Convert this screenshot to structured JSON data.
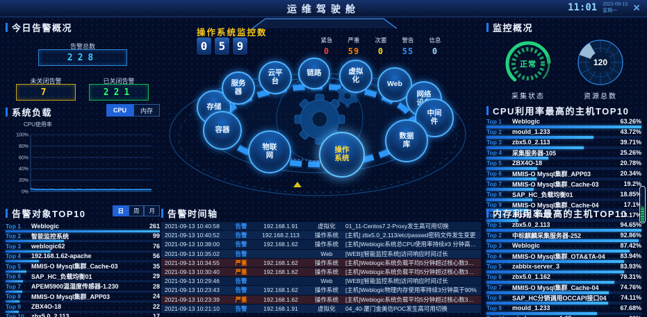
{
  "header": {
    "title": "运维驾驶舱",
    "time": "11:01",
    "date": "2021-09-13",
    "weekday": "星期一"
  },
  "colors": {
    "accent": "#1f7bff",
    "total": "#3fc8ff",
    "open": "#ffd21e",
    "closed": "#2aff6e",
    "urgent": "#f53f3f",
    "severe": "#ff7d00",
    "minor": "#fadc19",
    "warning": "#3491fa",
    "info": "#a0d3ff",
    "bar": "#3fb6ff",
    "gauge_ok": "#2ae58d"
  },
  "alert_overview": {
    "title": "今日告警概况",
    "total_label": "告警总数",
    "total": "228",
    "open_label": "未关闭告警",
    "open": "7",
    "closed_label": "已关闭告警",
    "closed": "221"
  },
  "system_load": {
    "title": "系统负载",
    "tabs": [
      "CPU",
      "内存"
    ],
    "active_tab": "CPU",
    "ylabel": "CPU使用率"
  },
  "alert_objects": {
    "title": "告警对象TOP10",
    "tabs": [
      "日",
      "周",
      "月"
    ],
    "active_tab": "日",
    "items": [
      {
        "rank": "Top 1",
        "name": "Weblogic",
        "value": "261"
      },
      {
        "rank": "Top 2",
        "name": "智能监控系统",
        "value": "99"
      },
      {
        "rank": "Top 3",
        "name": "weblogic62",
        "value": "76"
      },
      {
        "rank": "Top 4",
        "name": "192.168.1.62-apache",
        "value": "56"
      },
      {
        "rank": "Top 5",
        "name": "MMIS-O Mysql集群_Cache-03",
        "value": "35"
      },
      {
        "rank": "Top 6",
        "name": "SAP_HC_负载均衡01",
        "value": "29"
      },
      {
        "rank": "Top 7",
        "name": "APEM5900温湿度传感器-1.230",
        "value": "28"
      },
      {
        "rank": "Top 8",
        "name": "MMIS-O Mysql集群_APP03",
        "value": "24"
      },
      {
        "rank": "Top 9",
        "name": "ZBX4O-18",
        "value": "22"
      },
      {
        "rank": "Top 10",
        "name": "zbx5.0_2.113",
        "value": "17"
      }
    ]
  },
  "os_monitor": {
    "title": "操作系统监控数",
    "digits": [
      "0",
      "5",
      "9"
    ],
    "severities": [
      {
        "label": "紧急",
        "value": "0",
        "color": "#f53f3f"
      },
      {
        "label": "严重",
        "value": "59",
        "color": "#ff7d00"
      },
      {
        "label": "次要",
        "value": "0",
        "color": "#fadc19"
      },
      {
        "label": "警告",
        "value": "55",
        "color": "#3491fa"
      },
      {
        "label": "信息",
        "value": "0",
        "color": "#a0d3ff"
      }
    ]
  },
  "ring": {
    "categories": [
      {
        "lines": [
          "存储"
        ],
        "active": false
      },
      {
        "lines": [
          "服务",
          "器"
        ],
        "active": false
      },
      {
        "lines": [
          "云平",
          "台"
        ],
        "active": false
      },
      {
        "lines": [
          "链路"
        ],
        "active": false
      },
      {
        "lines": [
          "虚拟",
          "化"
        ],
        "active": false
      },
      {
        "lines": [
          "Web"
        ],
        "active": false
      },
      {
        "lines": [
          "网络",
          "设备"
        ],
        "active": false
      },
      {
        "lines": [
          "中间",
          "件"
        ],
        "active": false
      },
      {
        "lines": [
          "数据",
          "库"
        ],
        "active": false
      },
      {
        "lines": [
          "操作",
          "系统"
        ],
        "active": true
      },
      {
        "lines": [
          "物联",
          "网"
        ],
        "active": false
      },
      {
        "lines": [
          "容器"
        ],
        "active": false
      }
    ]
  },
  "timeline": {
    "title": "告警时间轴",
    "rows": [
      {
        "time": "2021-09-13 10:40:58",
        "tag": "告警",
        "level": "warn",
        "ip": "192.168.1.91",
        "category": "虚拟化",
        "desc": "01_11-Centos7.2-Proxy发生高可用切换"
      },
      {
        "time": "2021-09-13 10:40:52",
        "tag": "告警",
        "level": "warn",
        "ip": "192.168.2.113",
        "category": "操作系统",
        "desc": "[主机] zbx5.0_2.113/etc/passwd密码文件发生变更"
      },
      {
        "time": "2021-09-13 10:38:00",
        "tag": "告警",
        "level": "warn",
        "ip": "192.168.1.62",
        "category": "操作系统",
        "desc": "[主机]Weblogic系统总CPU使用率持续#3 分钟高于90 %"
      },
      {
        "time": "2021-09-13 10:35:02",
        "tag": "告警",
        "level": "warn",
        "ip": "",
        "category": "Web",
        "desc": "[WEB][智能监控系统]访问响应时间过长"
      },
      {
        "time": "2021-09-13 10:34:55",
        "tag": "严重",
        "level": "severe",
        "ip": "192.168.1.62",
        "category": "操作系统",
        "desc": "[主机]Weblogic系统负载平均5分钟超过核心数3倍核心数，系统负载过高"
      },
      {
        "time": "2021-09-13 10:30:40",
        "tag": "严重",
        "level": "severe",
        "ip": "192.168.1.62",
        "category": "操作系统",
        "desc": "[主机]Weblogic系统负载平均5分钟超过核心数3倍核心数，系统负载过高"
      },
      {
        "time": "2021-09-13 10:29:46",
        "tag": "告警",
        "level": "warn",
        "ip": "",
        "category": "Web",
        "desc": "[WEB][智能监控系统]访问响应时间过长"
      },
      {
        "time": "2021-09-13 10:23:43",
        "tag": "告警",
        "level": "warn",
        "ip": "192.168.1.62",
        "category": "操作系统",
        "desc": "[主机]Weblogic物理内存使用率持续3分钟高于90%"
      },
      {
        "time": "2021-09-13 10:23:39",
        "tag": "严重",
        "level": "severe",
        "ip": "192.168.1.62",
        "category": "操作系统",
        "desc": "[主机]Weblogic系统负载平均5分钟超过核心数3倍核心数，系统负载过高"
      },
      {
        "time": "2021-09-13 10:21:10",
        "tag": "告警",
        "level": "warn",
        "ip": "192.168.1.91",
        "category": "虚拟化",
        "desc": "04_40-厦门金美信POC发生高可用切换"
      }
    ]
  },
  "monitor_overview": {
    "title": "监控概况",
    "collect_status": "正常",
    "collect_label": "采集状态",
    "resource_total": "120",
    "resource_label": "资源总数"
  },
  "cpu_top": {
    "title": "CPU利用率最高的主机TOP10",
    "items": [
      {
        "rank": "Top 1",
        "name": "Weblogic",
        "value": "63.26%"
      },
      {
        "rank": "Top 2",
        "name": "mould_1.233",
        "value": "43.72%"
      },
      {
        "rank": "Top 3",
        "name": "zbx5.0_2.113",
        "value": "39.71%"
      },
      {
        "rank": "Top 4",
        "name": "采集服务器-105",
        "value": "25.26%"
      },
      {
        "rank": "Top 5",
        "name": "ZBX4O-18",
        "value": "20.78%"
      },
      {
        "rank": "Top 6",
        "name": "MMIS-O Mysql集群_APP03",
        "value": "20.34%"
      },
      {
        "rank": "Top 7",
        "name": "MMIS-O Mysql集群_Cache-03",
        "value": "19.2%"
      },
      {
        "rank": "Top 8",
        "name": "SAP_HC_负载均衡01",
        "value": "18.85%"
      },
      {
        "rank": "Top 9",
        "name": "MMIS-O Mysql集群_Cache-04",
        "value": "17.1%"
      },
      {
        "rank": "Top 10",
        "name": "zbx5.0_2.113",
        "value": "13.17%"
      }
    ]
  },
  "mem_top": {
    "title": "内存利用率最高的主机TOP10",
    "items": [
      {
        "rank": "Top 1",
        "name": "zbx5.0_2.113",
        "value": "94.65%"
      },
      {
        "rank": "Top 2",
        "name": "中标麒麟采集服务器-252",
        "value": "92.86%"
      },
      {
        "rank": "Top 3",
        "name": "Weblogic",
        "value": "87.42%"
      },
      {
        "rank": "Top 4",
        "name": "MMIS-O Mysql集群_OTA&TA-04",
        "value": "83.94%"
      },
      {
        "rank": "Top 5",
        "name": "zabbix-server_3",
        "value": "83.93%"
      },
      {
        "rank": "Top 6",
        "name": "zbx5.0_1.162",
        "value": "78.31%"
      },
      {
        "rank": "Top 7",
        "name": "MMIS-O Mysql集群_Cache-04",
        "value": "74.76%"
      },
      {
        "rank": "Top 8",
        "name": "SAP_HC分销调用OCCAPI接口04",
        "value": "74.11%"
      },
      {
        "rank": "Top 9",
        "name": "mould_1.233",
        "value": "67.68%"
      },
      {
        "rank": "Top 10",
        "name": "windows-snmp-1.65",
        "value": "60%"
      }
    ]
  },
  "chart_data": [
    {
      "type": "line",
      "title": "系统负载 CPU使用率",
      "ylabel": "CPU使用率",
      "ylim": [
        0,
        100
      ],
      "yticks": [
        0,
        20,
        40,
        60,
        80,
        100
      ],
      "grid": true,
      "x_labels_visible": false,
      "values": [
        5.2,
        4.1,
        3.6,
        3.9,
        3.4,
        3.8,
        3.3,
        3.6,
        4.0,
        3.5,
        3.2,
        3.7,
        3.4,
        3.9,
        3.3,
        3.6,
        3.8,
        3.2,
        3.5,
        3.9,
        3.4,
        3.1,
        3.6,
        3.3,
        3.8,
        3.5,
        3.2,
        3.6,
        3.4,
        3.7,
        3.3,
        3.5,
        3.8,
        3.4,
        3.1,
        3.5,
        3.7,
        3.3,
        3.6,
        3.4,
        3.2,
        3.6,
        3.3,
        3.5,
        3.7,
        3.4,
        3.6,
        3.2
      ]
    },
    {
      "type": "bar",
      "title": "告警对象TOP10",
      "categories": [
        "Weblogic",
        "智能监控系统",
        "weblogic62",
        "192.168.1.62-apache",
        "MMIS-O Mysql集群_Cache-03",
        "SAP_HC_负载均衡01",
        "APEM5900温湿度传感器-1.230",
        "MMIS-O Mysql集群_APP03",
        "ZBX4O-18",
        "zbx5.0_2.113"
      ],
      "values": [
        261,
        99,
        76,
        56,
        35,
        29,
        28,
        24,
        22,
        17
      ]
    },
    {
      "type": "bar",
      "title": "CPU利用率最高的主机TOP10",
      "categories": [
        "Weblogic",
        "mould_1.233",
        "zbx5.0_2.113",
        "采集服务器-105",
        "ZBX4O-18",
        "MMIS-O Mysql集群_APP03",
        "MMIS-O Mysql集群_Cache-03",
        "SAP_HC_负载均衡01",
        "MMIS-O Mysql集群_Cache-04",
        "zbx5.0_2.113"
      ],
      "values": [
        63.26,
        43.72,
        39.71,
        25.26,
        20.78,
        20.34,
        19.2,
        18.85,
        17.1,
        13.17
      ]
    },
    {
      "type": "bar",
      "title": "内存利用率最高的主机TOP10",
      "categories": [
        "zbx5.0_2.113",
        "中标麒麟采集服务器-252",
        "Weblogic",
        "MMIS-O Mysql集群_OTA&TA-04",
        "zabbix-server_3",
        "zbx5.0_1.162",
        "MMIS-O Mysql集群_Cache-04",
        "SAP_HC分销调用OCCAPI接口04",
        "mould_1.233",
        "windows-snmp-1.65"
      ],
      "values": [
        94.65,
        92.86,
        87.42,
        83.94,
        83.93,
        78.31,
        74.76,
        74.11,
        67.68,
        60
      ]
    },
    {
      "type": "gauge",
      "title": "资源总数",
      "value": 120
    }
  ]
}
